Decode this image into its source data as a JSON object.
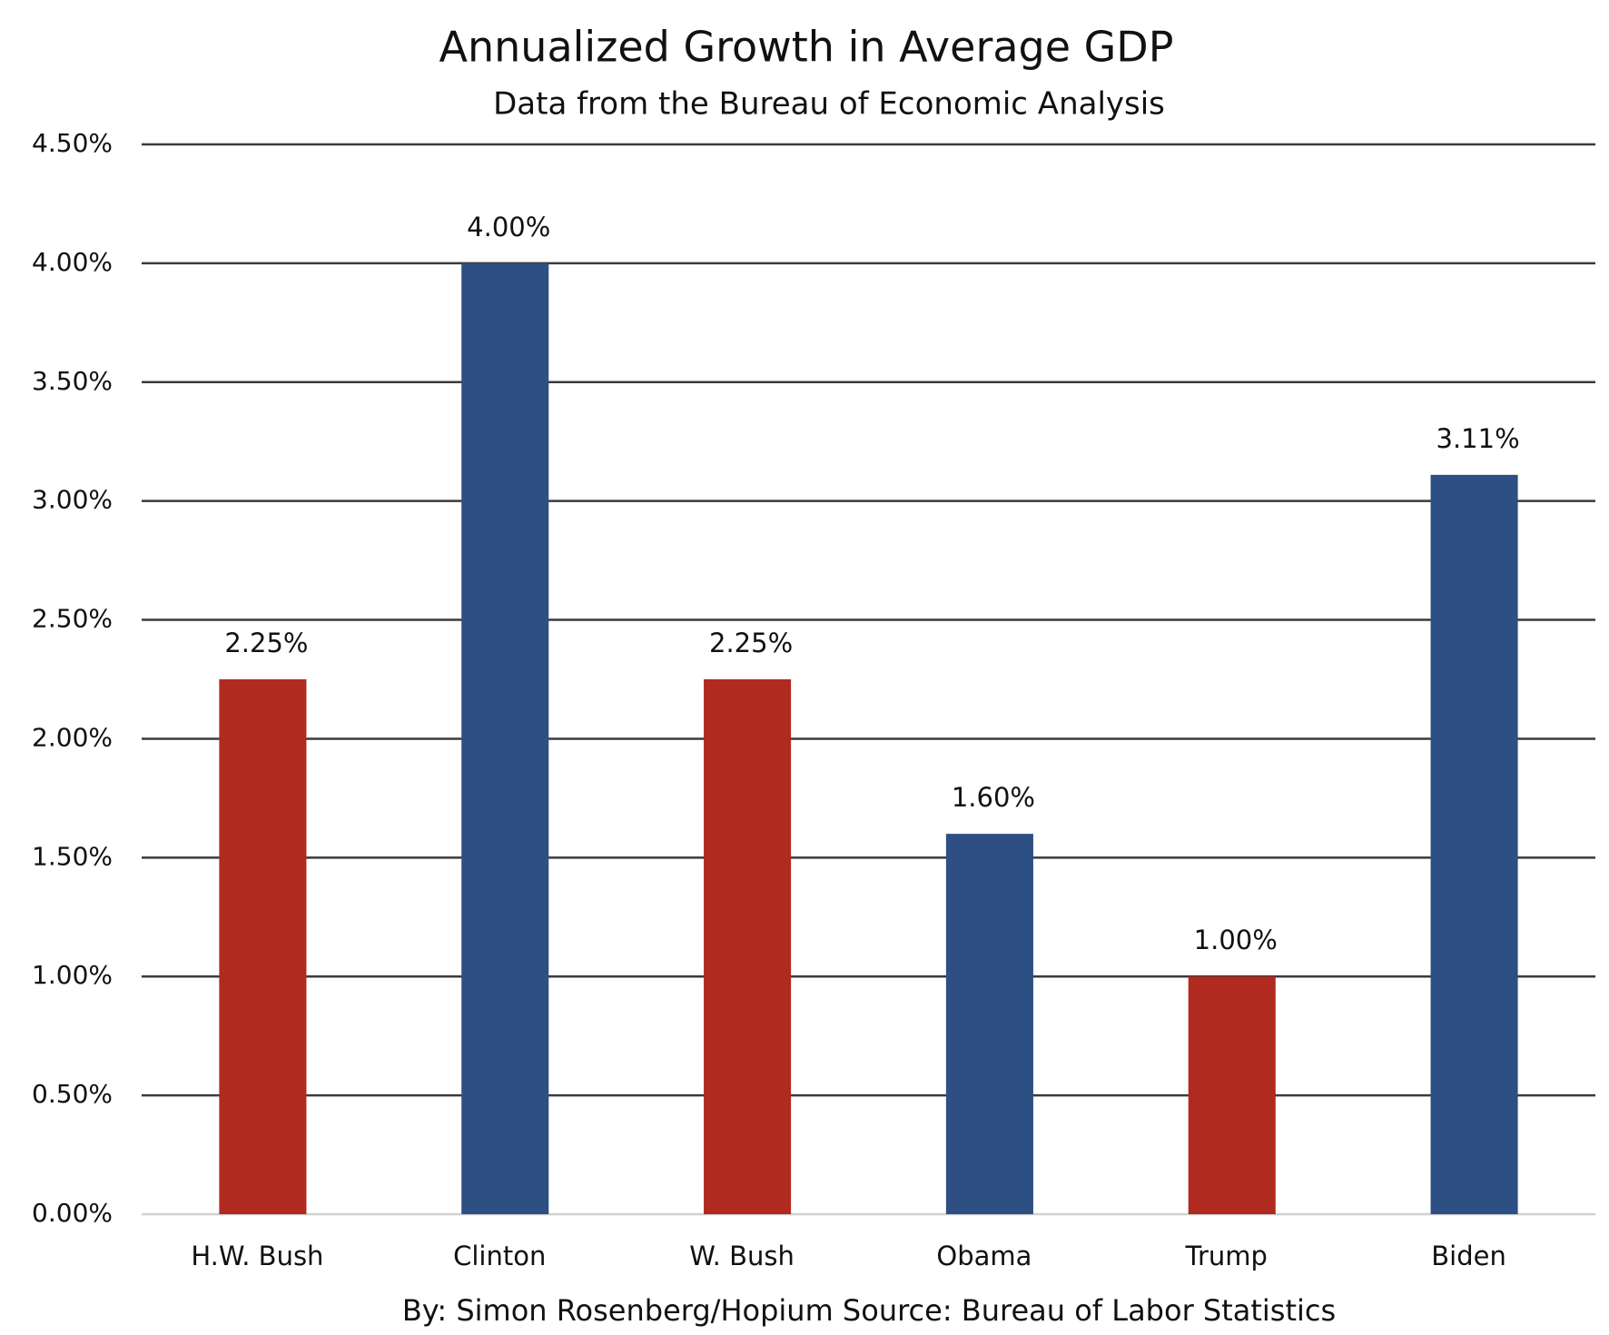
{
  "chart_data": {
    "type": "bar",
    "title": "Annualized Growth in Average GDP",
    "subtitle": "Data from the Bureau of Economic Analysis",
    "footer": "By: Simon Rosenberg/Hopium Source: Bureau of Labor Statistics",
    "categories": [
      "H.W. Bush",
      "Clinton",
      "W. Bush",
      "Obama",
      "Trump",
      "Biden"
    ],
    "values": [
      2.25,
      4.0,
      2.25,
      1.6,
      1.0,
      3.11
    ],
    "value_labels": [
      "2.25%",
      "4.00%",
      "2.25%",
      "1.60%",
      "1.00%",
      "3.11%"
    ],
    "colors": [
      "#b02a20",
      "#2e4f84",
      "#b02a20",
      "#2e4f84",
      "#b02a20",
      "#2e4f84"
    ],
    "ylim": [
      0,
      4.5
    ],
    "yticks": [
      {
        "value": 0,
        "label": "0.00%"
      },
      {
        "value": 0.5,
        "label": "0.50%"
      },
      {
        "value": 1,
        "label": "1.00%"
      },
      {
        "value": 1.5,
        "label": "1.50%"
      },
      {
        "value": 2,
        "label": "2.00%"
      },
      {
        "value": 2.5,
        "label": "2.50%"
      },
      {
        "value": 3,
        "label": "3.00%"
      },
      {
        "value": 3.5,
        "label": "3.50%"
      },
      {
        "value": 4,
        "label": "4.00%"
      },
      {
        "value": 4.5,
        "label": "4.50%"
      }
    ],
    "grid": true
  }
}
